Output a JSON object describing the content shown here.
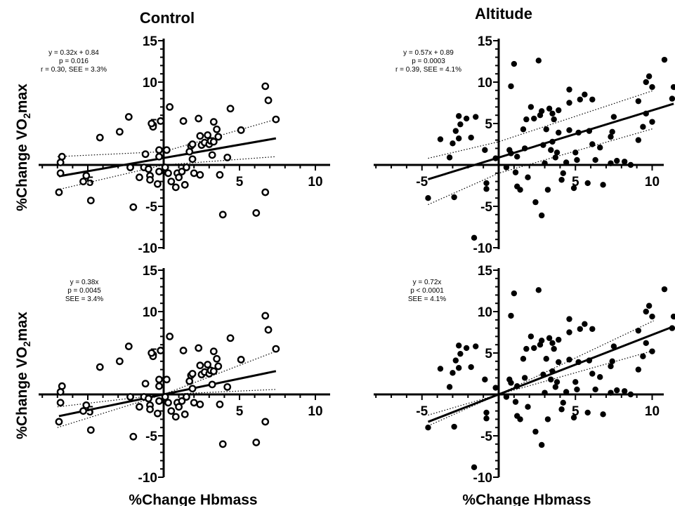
{
  "figure": {
    "col_titles": [
      "Control",
      "Altitude"
    ],
    "xlabel": "%Change Hbmass",
    "ylabel_prefix": "%Change VO",
    "ylabel_sub": "2",
    "ylabel_suffix": "max"
  },
  "chart_data": [
    {
      "type": "scatter",
      "panel": "control-top",
      "marker": "open",
      "xlim": [
        -7,
        11
      ],
      "ylim": [
        -10,
        15
      ],
      "xticks": [
        -5,
        5,
        10
      ],
      "yticks": [
        -10,
        -5,
        5,
        10,
        15
      ],
      "stats": [
        "y = 0.32x + 0.84",
        "p  = 0.016",
        "r = 0.30, SEE = 3.3%"
      ],
      "fit": {
        "slope": 0.32,
        "intercept": 0.84
      },
      "ci_upper": [
        [
          -7,
          1.0
        ],
        [
          0,
          1.6
        ],
        [
          7.4,
          5.5
        ]
      ],
      "ci_lower": [
        [
          -7,
          -3.0
        ],
        [
          0,
          0.0
        ],
        [
          7.4,
          1.0
        ]
      ],
      "points": [
        [
          -6.7,
          1.0
        ],
        [
          -6.8,
          0.3
        ],
        [
          -6.8,
          -1.0
        ],
        [
          -6.9,
          -3.3
        ],
        [
          -5.1,
          -1.3
        ],
        [
          -5.3,
          -2.0
        ],
        [
          -4.8,
          -4.3
        ],
        [
          -4.2,
          3.3
        ],
        [
          -2.9,
          4.0
        ],
        [
          -2.3,
          5.8
        ],
        [
          -2.2,
          -0.3
        ],
        [
          -2.0,
          -5.1
        ],
        [
          -1.6,
          -1.5
        ],
        [
          -1.3,
          -0.3
        ],
        [
          -1.2,
          1.3
        ],
        [
          -1.0,
          -0.5
        ],
        [
          -0.9,
          -1.3
        ],
        [
          -0.9,
          -1.8
        ],
        [
          -0.7,
          4.6
        ],
        [
          -0.8,
          5.0
        ],
        [
          -0.3,
          -0.8
        ],
        [
          -0.4,
          -2.3
        ],
        [
          -0.3,
          1.8
        ],
        [
          -0.3,
          1.0
        ],
        [
          -0.2,
          5.3
        ],
        [
          0.2,
          1.8
        ],
        [
          0.3,
          -1.0
        ],
        [
          0.1,
          -0.3
        ],
        [
          0.4,
          7.0
        ],
        [
          0.5,
          -2.0
        ],
        [
          0.8,
          -2.7
        ],
        [
          0.9,
          -1.0
        ],
        [
          1.0,
          -1.5
        ],
        [
          1.2,
          -0.8
        ],
        [
          1.3,
          5.3
        ],
        [
          1.4,
          -2.4
        ],
        [
          1.5,
          -0.3
        ],
        [
          1.7,
          1.6
        ],
        [
          1.8,
          2.3
        ],
        [
          1.9,
          2.5
        ],
        [
          1.9,
          0.7
        ],
        [
          2.0,
          -1.0
        ],
        [
          2.3,
          5.6
        ],
        [
          2.4,
          -1.2
        ],
        [
          2.4,
          3.5
        ],
        [
          2.5,
          2.4
        ],
        [
          2.7,
          2.7
        ],
        [
          2.9,
          3.6
        ],
        [
          3.0,
          2.5
        ],
        [
          3.1,
          2.9
        ],
        [
          3.2,
          1.2
        ],
        [
          3.3,
          5.2
        ],
        [
          3.3,
          2.8
        ],
        [
          3.5,
          4.3
        ],
        [
          3.6,
          3.4
        ],
        [
          3.7,
          -1.2
        ],
        [
          3.9,
          -6.0
        ],
        [
          4.2,
          0.9
        ],
        [
          4.4,
          6.8
        ],
        [
          5.1,
          4.2
        ],
        [
          6.1,
          -5.8
        ],
        [
          6.7,
          -3.3
        ],
        [
          6.7,
          9.5
        ],
        [
          6.9,
          7.8
        ],
        [
          7.4,
          5.5
        ]
      ]
    },
    {
      "type": "scatter",
      "panel": "altitude-top",
      "marker": "filled",
      "xlim": [
        -6,
        11
      ],
      "ylim": [
        -10,
        15
      ],
      "xticks": [
        -5,
        5,
        10
      ],
      "yticks": [
        -10,
        -5,
        5,
        10,
        15
      ],
      "stats": [
        "y = 0.57x + 0.89",
        "p  = 0.0003",
        "r = 0.39, SEE = 4.1%"
      ],
      "fit": {
        "slope": 0.57,
        "intercept": 0.89
      },
      "ci_upper": [
        [
          -4.6,
          0.8
        ],
        [
          0,
          2.8
        ],
        [
          10.1,
          9.0
        ]
      ],
      "ci_lower": [
        [
          -4.6,
          -4.8
        ],
        [
          0,
          -1.0
        ],
        [
          10.1,
          4.4
        ]
      ],
      "points": [
        [
          -4.6,
          -4.0
        ],
        [
          -3.8,
          3.1
        ],
        [
          -3.2,
          0.9
        ],
        [
          -3.0,
          2.6
        ],
        [
          -2.9,
          -3.9
        ],
        [
          -2.8,
          4.1
        ],
        [
          -2.6,
          3.2
        ],
        [
          -2.6,
          5.9
        ],
        [
          -2.5,
          4.9
        ],
        [
          -2.1,
          5.6
        ],
        [
          -1.8,
          3.3
        ],
        [
          -1.6,
          -8.8
        ],
        [
          -1.5,
          5.8
        ],
        [
          -0.8,
          -2.2
        ],
        [
          -0.9,
          1.8
        ],
        [
          -0.8,
          -2.9
        ],
        [
          -0.2,
          0.8
        ],
        [
          0.5,
          -0.3
        ],
        [
          0.7,
          1.8
        ],
        [
          0.8,
          1.4
        ],
        [
          0.8,
          9.5
        ],
        [
          1.0,
          12.2
        ],
        [
          1.1,
          -0.9
        ],
        [
          1.2,
          -2.6
        ],
        [
          1.2,
          1.0
        ],
        [
          1.4,
          -3.0
        ],
        [
          1.6,
          4.3
        ],
        [
          1.7,
          2.0
        ],
        [
          1.8,
          5.5
        ],
        [
          1.9,
          -1.5
        ],
        [
          2.1,
          7.0
        ],
        [
          2.3,
          5.6
        ],
        [
          2.4,
          -4.5
        ],
        [
          2.6,
          12.6
        ],
        [
          2.7,
          6.0
        ],
        [
          2.8,
          6.5
        ],
        [
          2.8,
          -6.1
        ],
        [
          2.9,
          2.4
        ],
        [
          3.0,
          0.2
        ],
        [
          3.1,
          4.3
        ],
        [
          3.2,
          -3.0
        ],
        [
          3.3,
          6.8
        ],
        [
          3.4,
          1.8
        ],
        [
          3.5,
          6.2
        ],
        [
          3.5,
          2.8
        ],
        [
          3.6,
          5.5
        ],
        [
          3.7,
          0.9
        ],
        [
          3.8,
          1.5
        ],
        [
          3.9,
          6.6
        ],
        [
          3.9,
          3.9
        ],
        [
          4.1,
          -1.8
        ],
        [
          4.2,
          -1.0
        ],
        [
          4.4,
          0.3
        ],
        [
          4.6,
          7.5
        ],
        [
          4.6,
          9.1
        ],
        [
          4.6,
          4.2
        ],
        [
          4.9,
          -2.8
        ],
        [
          5.0,
          1.5
        ],
        [
          5.1,
          0.6
        ],
        [
          5.2,
          3.9
        ],
        [
          5.3,
          7.9
        ],
        [
          5.6,
          8.5
        ],
        [
          5.8,
          -2.2
        ],
        [
          5.9,
          4.1
        ],
        [
          6.1,
          7.9
        ],
        [
          6.1,
          2.5
        ],
        [
          6.3,
          0.6
        ],
        [
          6.6,
          2.1
        ],
        [
          6.8,
          -2.4
        ],
        [
          7.3,
          3.4
        ],
        [
          7.3,
          0.2
        ],
        [
          7.4,
          4.0
        ],
        [
          7.5,
          5.8
        ],
        [
          7.7,
          0.5
        ],
        [
          8.2,
          0.4
        ],
        [
          8.6,
          0.0
        ],
        [
          9.1,
          3.0
        ],
        [
          9.1,
          7.7
        ],
        [
          9.4,
          4.6
        ],
        [
          9.6,
          6.2
        ],
        [
          9.6,
          10.0
        ],
        [
          9.8,
          10.7
        ],
        [
          10.0,
          5.2
        ],
        [
          10.0,
          9.4
        ],
        [
          10.8,
          12.7
        ],
        [
          11.3,
          8.0
        ],
        [
          11.4,
          9.4
        ]
      ]
    },
    {
      "type": "scatter",
      "panel": "control-bottom",
      "marker": "open",
      "xlim": [
        -7,
        11
      ],
      "ylim": [
        -10,
        15
      ],
      "xticks": [
        -5,
        5,
        10
      ],
      "yticks": [
        -10,
        -5,
        5,
        10,
        15
      ],
      "stats": [
        "y = 0.38x",
        "p  = 0.0045",
        "SEE = 3.4%"
      ],
      "fit": {
        "slope": 0.38,
        "intercept": 0
      },
      "ci_upper": [
        [
          -7,
          -1.5
        ],
        [
          0,
          0.0
        ],
        [
          7.4,
          5.2
        ]
      ],
      "ci_lower": [
        [
          -7,
          -4.0
        ],
        [
          0,
          0.0
        ],
        [
          7.4,
          0.6
        ]
      ],
      "points": [
        [
          -6.7,
          1.0
        ],
        [
          -6.8,
          0.3
        ],
        [
          -6.8,
          -1.0
        ],
        [
          -6.9,
          -3.3
        ],
        [
          -5.1,
          -1.3
        ],
        [
          -5.3,
          -2.0
        ],
        [
          -4.8,
          -4.3
        ],
        [
          -4.2,
          3.3
        ],
        [
          -2.9,
          4.0
        ],
        [
          -2.3,
          5.8
        ],
        [
          -2.2,
          -0.3
        ],
        [
          -2.0,
          -5.1
        ],
        [
          -1.6,
          -1.5
        ],
        [
          -1.3,
          -0.3
        ],
        [
          -1.2,
          1.3
        ],
        [
          -1.0,
          -0.5
        ],
        [
          -0.9,
          -1.3
        ],
        [
          -0.9,
          -1.8
        ],
        [
          -0.7,
          4.6
        ],
        [
          -0.8,
          5.0
        ],
        [
          -0.3,
          -0.8
        ],
        [
          -0.4,
          -2.3
        ],
        [
          -0.3,
          1.8
        ],
        [
          -0.3,
          1.0
        ],
        [
          -0.2,
          5.3
        ],
        [
          0.2,
          1.8
        ],
        [
          0.3,
          -1.0
        ],
        [
          0.1,
          -0.3
        ],
        [
          0.4,
          7.0
        ],
        [
          0.5,
          -2.0
        ],
        [
          0.8,
          -2.7
        ],
        [
          0.9,
          -1.0
        ],
        [
          1.0,
          -1.5
        ],
        [
          1.2,
          -0.8
        ],
        [
          1.3,
          5.3
        ],
        [
          1.4,
          -2.4
        ],
        [
          1.5,
          -0.3
        ],
        [
          1.7,
          1.6
        ],
        [
          1.8,
          2.3
        ],
        [
          1.9,
          2.5
        ],
        [
          1.9,
          0.7
        ],
        [
          2.0,
          -1.0
        ],
        [
          2.3,
          5.6
        ],
        [
          2.4,
          -1.2
        ],
        [
          2.4,
          3.5
        ],
        [
          2.5,
          2.4
        ],
        [
          2.7,
          2.7
        ],
        [
          2.9,
          3.6
        ],
        [
          3.0,
          2.5
        ],
        [
          3.1,
          2.9
        ],
        [
          3.2,
          1.2
        ],
        [
          3.3,
          5.2
        ],
        [
          3.3,
          2.8
        ],
        [
          3.5,
          4.3
        ],
        [
          3.6,
          3.4
        ],
        [
          3.7,
          -1.2
        ],
        [
          3.9,
          -6.0
        ],
        [
          4.2,
          0.9
        ],
        [
          4.4,
          6.8
        ],
        [
          5.1,
          4.2
        ],
        [
          6.1,
          -5.8
        ],
        [
          6.7,
          -3.3
        ],
        [
          6.7,
          9.5
        ],
        [
          6.9,
          7.8
        ],
        [
          7.4,
          5.5
        ]
      ]
    },
    {
      "type": "scatter",
      "panel": "altitude-bottom",
      "marker": "filled",
      "xlim": [
        -6,
        11
      ],
      "ylim": [
        -10,
        15
      ],
      "xticks": [
        -5,
        5,
        10
      ],
      "yticks": [
        -10,
        -5,
        5,
        10,
        15
      ],
      "stats": [
        "y = 0.72x",
        "p  < 0.0001",
        "SEE = 4.1%"
      ],
      "fit": {
        "slope": 0.72,
        "intercept": 0
      },
      "ci_upper": [
        [
          -4.6,
          -2.5
        ],
        [
          0,
          0.0
        ],
        [
          10.1,
          8.9
        ]
      ],
      "ci_lower": [
        [
          -4.6,
          -3.8
        ],
        [
          0,
          0.0
        ],
        [
          10.1,
          5.3
        ]
      ],
      "points": [
        [
          -4.6,
          -4.0
        ],
        [
          -3.8,
          3.1
        ],
        [
          -3.2,
          0.9
        ],
        [
          -3.0,
          2.6
        ],
        [
          -2.9,
          -3.9
        ],
        [
          -2.8,
          4.1
        ],
        [
          -2.6,
          3.2
        ],
        [
          -2.6,
          5.9
        ],
        [
          -2.5,
          4.9
        ],
        [
          -2.1,
          5.6
        ],
        [
          -1.8,
          3.3
        ],
        [
          -1.6,
          -8.8
        ],
        [
          -1.5,
          5.8
        ],
        [
          -0.8,
          -2.2
        ],
        [
          -0.9,
          1.8
        ],
        [
          -0.8,
          -2.9
        ],
        [
          -0.2,
          0.8
        ],
        [
          0.5,
          -0.3
        ],
        [
          0.7,
          1.8
        ],
        [
          0.8,
          1.4
        ],
        [
          0.8,
          9.5
        ],
        [
          1.0,
          12.2
        ],
        [
          1.1,
          -0.9
        ],
        [
          1.2,
          -2.6
        ],
        [
          1.2,
          1.0
        ],
        [
          1.4,
          -3.0
        ],
        [
          1.6,
          4.3
        ],
        [
          1.7,
          2.0
        ],
        [
          1.8,
          5.5
        ],
        [
          1.9,
          -1.5
        ],
        [
          2.1,
          7.0
        ],
        [
          2.3,
          5.6
        ],
        [
          2.4,
          -4.5
        ],
        [
          2.6,
          12.6
        ],
        [
          2.7,
          6.0
        ],
        [
          2.8,
          6.5
        ],
        [
          2.8,
          -6.1
        ],
        [
          2.9,
          2.4
        ],
        [
          3.0,
          0.2
        ],
        [
          3.1,
          4.3
        ],
        [
          3.2,
          -3.0
        ],
        [
          3.3,
          6.8
        ],
        [
          3.4,
          1.8
        ],
        [
          3.5,
          6.2
        ],
        [
          3.5,
          2.8
        ],
        [
          3.6,
          5.5
        ],
        [
          3.7,
          0.9
        ],
        [
          3.8,
          1.5
        ],
        [
          3.9,
          6.6
        ],
        [
          3.9,
          3.9
        ],
        [
          4.1,
          -1.8
        ],
        [
          4.2,
          -1.0
        ],
        [
          4.4,
          0.3
        ],
        [
          4.6,
          7.5
        ],
        [
          4.6,
          9.1
        ],
        [
          4.6,
          4.2
        ],
        [
          4.9,
          -2.8
        ],
        [
          5.0,
          1.5
        ],
        [
          5.1,
          0.6
        ],
        [
          5.2,
          3.9
        ],
        [
          5.3,
          7.9
        ],
        [
          5.6,
          8.5
        ],
        [
          5.8,
          -2.2
        ],
        [
          5.9,
          4.1
        ],
        [
          6.1,
          7.9
        ],
        [
          6.1,
          2.5
        ],
        [
          6.3,
          0.6
        ],
        [
          6.6,
          2.1
        ],
        [
          6.8,
          -2.4
        ],
        [
          7.3,
          3.4
        ],
        [
          7.3,
          0.2
        ],
        [
          7.4,
          4.0
        ],
        [
          7.5,
          5.8
        ],
        [
          7.7,
          0.5
        ],
        [
          8.2,
          0.4
        ],
        [
          8.6,
          0.0
        ],
        [
          9.1,
          3.0
        ],
        [
          9.1,
          7.7
        ],
        [
          9.4,
          4.6
        ],
        [
          9.6,
          6.2
        ],
        [
          9.6,
          10.0
        ],
        [
          9.8,
          10.7
        ],
        [
          10.0,
          5.2
        ],
        [
          10.0,
          9.4
        ],
        [
          10.8,
          12.7
        ],
        [
          11.3,
          8.0
        ],
        [
          11.4,
          9.4
        ]
      ]
    }
  ]
}
